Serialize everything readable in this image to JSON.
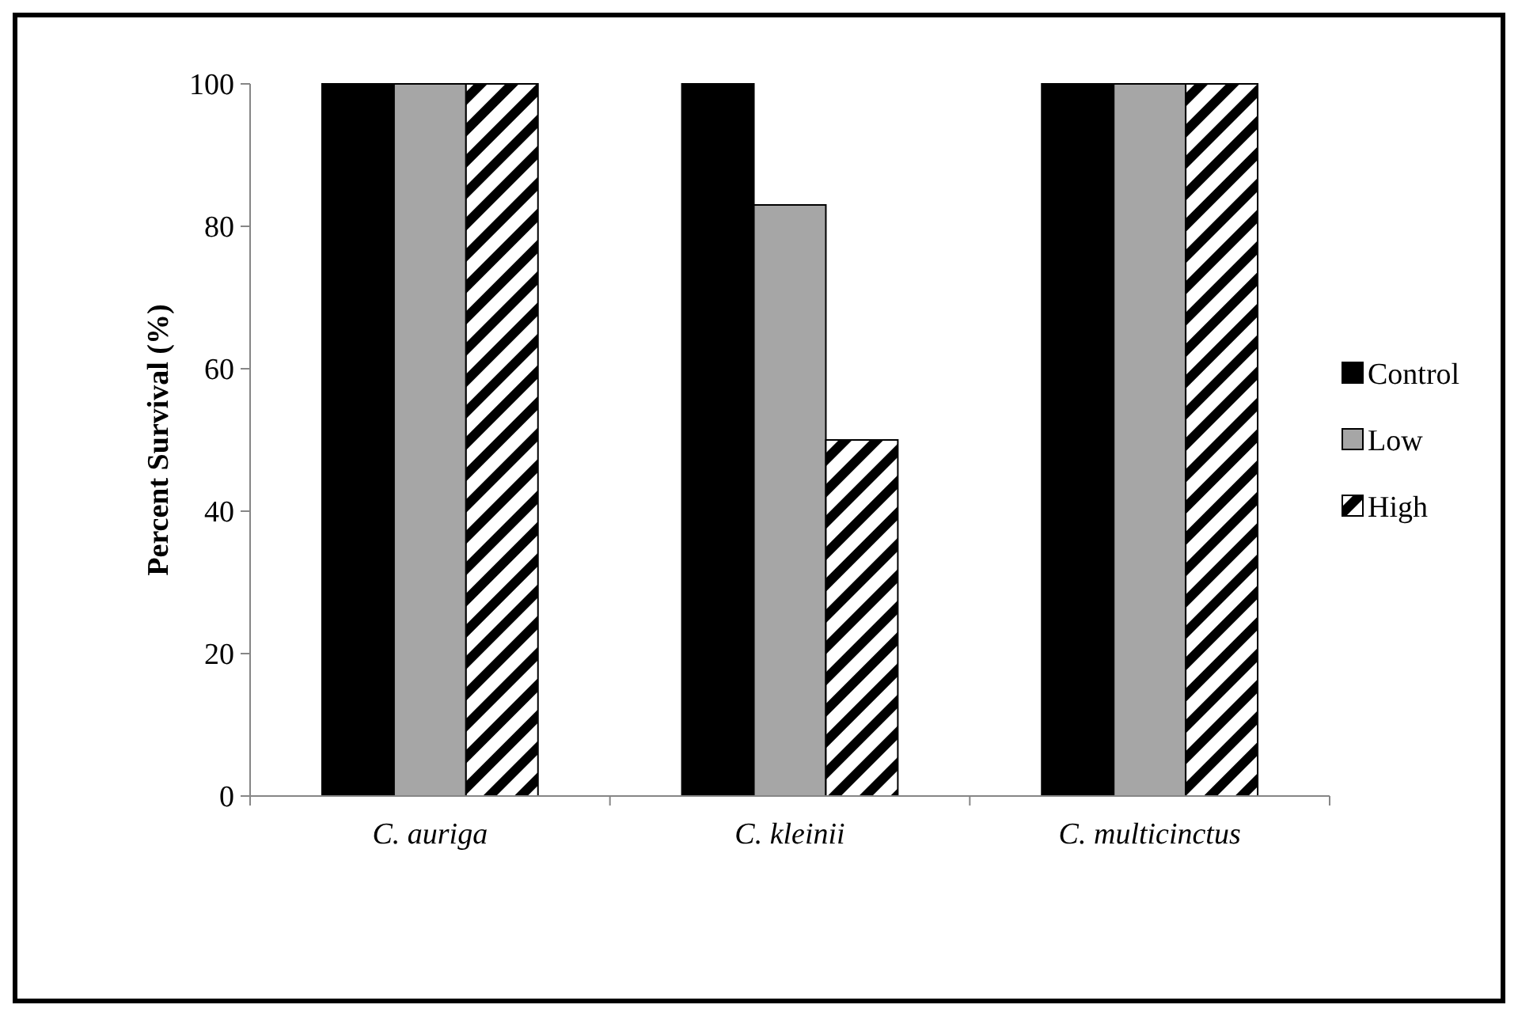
{
  "chart_data": {
    "type": "bar",
    "ylabel": "Percent Survival (%)",
    "categories": [
      "C. auriga",
      "C. kleinii",
      "C. multicinctus"
    ],
    "series": [
      {
        "name": "Control",
        "color": "#000000",
        "values": [
          100,
          100,
          100
        ]
      },
      {
        "name": "Low",
        "color": "#a6a6a6",
        "values": [
          100,
          83,
          100
        ]
      },
      {
        "name": "High",
        "color": "#000000",
        "values": [
          100,
          50,
          100
        ]
      }
    ],
    "ylim": [
      0,
      100
    ],
    "yticks": [
      0,
      20,
      40,
      60,
      80,
      100
    ],
    "grid": false,
    "legend": "right"
  }
}
